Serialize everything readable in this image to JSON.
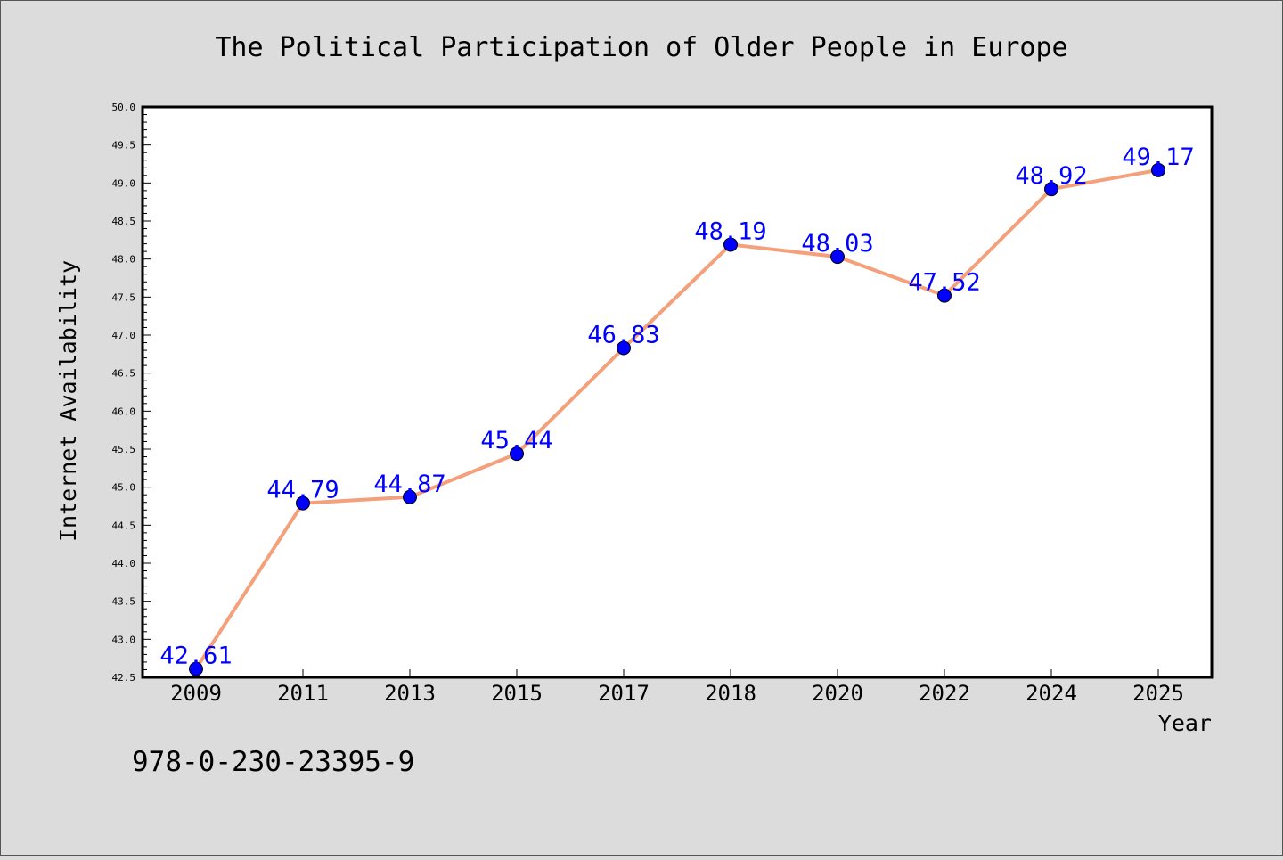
{
  "chart_data": {
    "type": "line",
    "title": "The Political Participation of Older People in Europe",
    "xlabel": "Year",
    "ylabel": "Internet Availability",
    "categories": [
      "2009",
      "2011",
      "2013",
      "2015",
      "2017",
      "2018",
      "2020",
      "2022",
      "2024",
      "2025"
    ],
    "series": [
      {
        "values": [
          42.61,
          44.79,
          44.87,
          45.44,
          46.83,
          48.19,
          48.03,
          47.52,
          48.92,
          49.17
        ],
        "data_labels": [
          "42.61",
          "44.79",
          "44.87",
          "45.44",
          "46.83",
          "48.19",
          "48.03",
          "47.52",
          "48.92",
          "49.17"
        ],
        "line_color": "#f4a07a",
        "marker_color": "#0000ff"
      }
    ],
    "ylim": [
      42.5,
      50.0
    ],
    "ytick_labels": [
      "42.5",
      "43.0",
      "43.5",
      "44.0",
      "44.5",
      "45.0",
      "45.5",
      "46.0",
      "46.5",
      "47.0",
      "47.5",
      "48.0",
      "48.5",
      "49.0",
      "49.5",
      "50.0"
    ],
    "grid": false,
    "legend": "none",
    "data_label_color": "#0000ff",
    "background_color": "#dcdcdc",
    "plot_background_color": "#ffffff"
  },
  "footer": {
    "isbn": "978-0-230-23395-9"
  }
}
